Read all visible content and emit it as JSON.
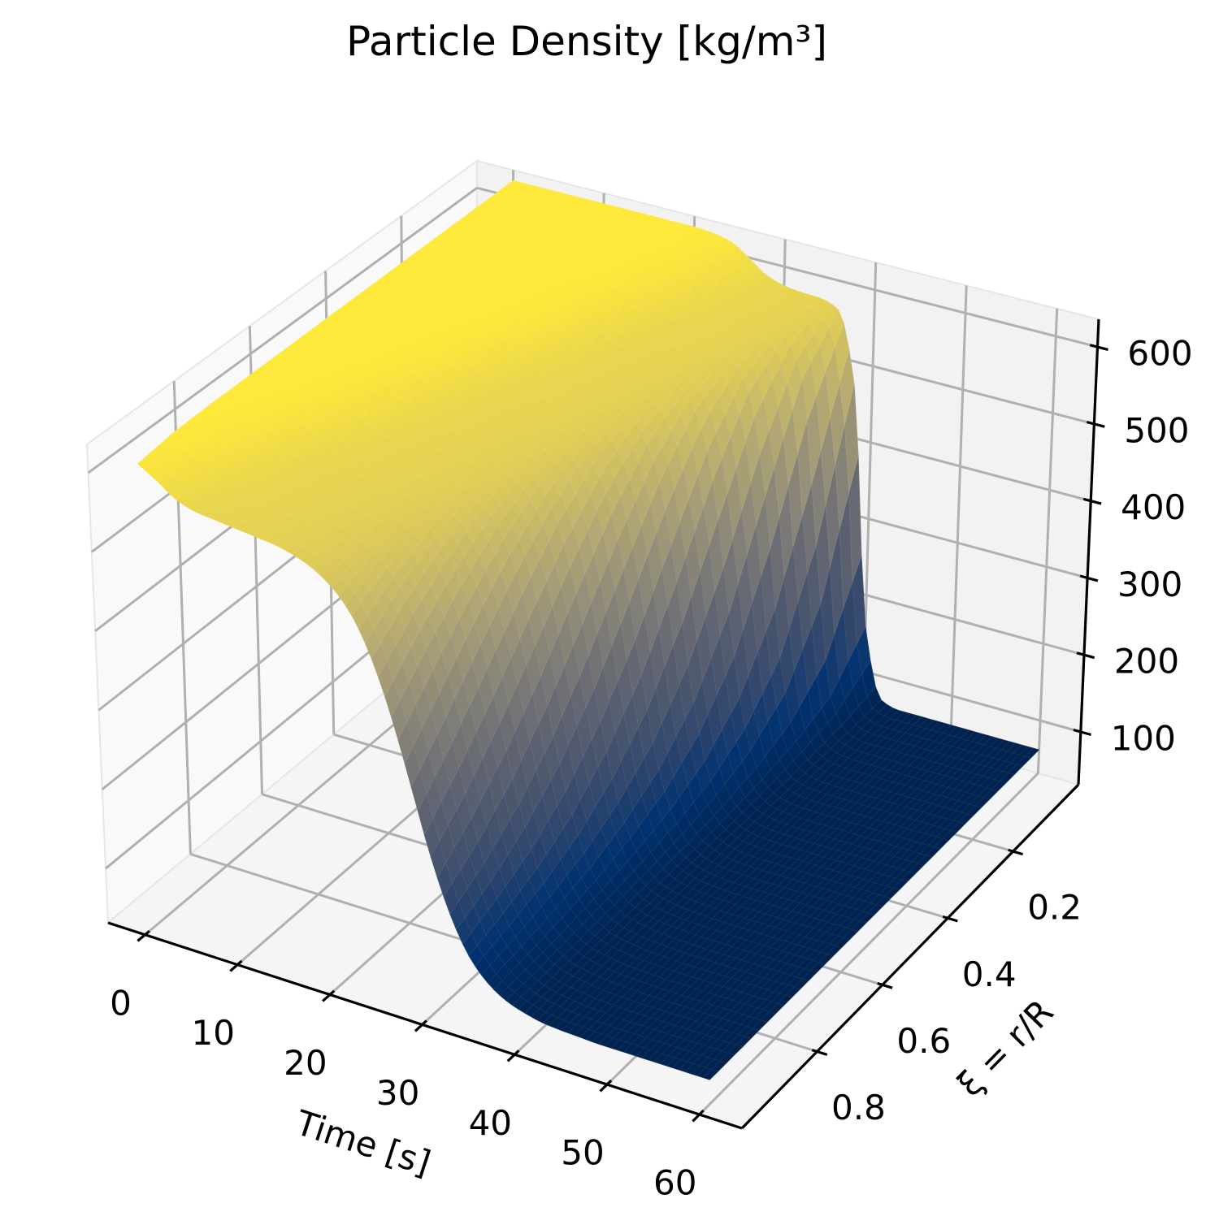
{
  "chart_data": {
    "type": "surface",
    "title": "Particle Density [kg/m³]",
    "xlabel": "Time [s]",
    "ylabel": "ξ = r/R",
    "zlabel": "",
    "colormap": "cividis",
    "x_ticks": [
      0,
      10,
      20,
      30,
      40,
      50,
      60
    ],
    "x_tick_labels": [
      "0",
      "10",
      "20",
      "30",
      "40",
      "50",
      "60"
    ],
    "y_ticks": [
      0.2,
      0.4,
      0.6,
      0.8
    ],
    "y_tick_labels": [
      "0.2",
      "0.4",
      "0.6",
      "0.8"
    ],
    "z_ticks": [
      100,
      200,
      300,
      400,
      500,
      600
    ],
    "z_tick_labels": [
      "100",
      "200",
      "300",
      "400",
      "500",
      "600"
    ],
    "xlim": [
      -4,
      64.6
    ],
    "ylim": [
      0,
      1.03
    ],
    "zlim": [
      31.4,
      636
    ],
    "grid": true,
    "x": [
      0,
      2,
      4,
      6,
      8,
      10,
      12,
      14,
      16,
      18,
      20,
      22,
      24,
      26,
      28,
      30,
      32,
      34,
      36,
      38,
      40,
      42,
      44,
      46,
      48,
      50,
      52,
      54,
      56,
      58,
      60
    ],
    "y": [
      0.0,
      0.1,
      0.2,
      0.3,
      0.4,
      0.5,
      0.6,
      0.7,
      0.8,
      0.9,
      1.0
    ],
    "z": [
      [
        622,
        622,
        622,
        622,
        622,
        622,
        622,
        622,
        622,
        622,
        622,
        620,
        615,
        600,
        583,
        575,
        572,
        571,
        562,
        470,
        159,
        69,
        62,
        62,
        62,
        62,
        62,
        62,
        62,
        62,
        62
      ],
      [
        622,
        622,
        622,
        622,
        622,
        622,
        622,
        622,
        622,
        622,
        620,
        613,
        596,
        581,
        575,
        572,
        569,
        560,
        509,
        300,
        109,
        68,
        62,
        62,
        62,
        62,
        62,
        62,
        62,
        62,
        62
      ],
      [
        622,
        622,
        622,
        622,
        622,
        622,
        622,
        622,
        621,
        619,
        610,
        592,
        579,
        574,
        572,
        568,
        560,
        526,
        397,
        194,
        92,
        68,
        63,
        62,
        62,
        62,
        62,
        62,
        62,
        62,
        62
      ],
      [
        622,
        622,
        622,
        622,
        622,
        622,
        622,
        621,
        618,
        607,
        588,
        577,
        573,
        571,
        568,
        560,
        534,
        450,
        285,
        143,
        84,
        67,
        63,
        62,
        62,
        62,
        62,
        62,
        62,
        62,
        62
      ],
      [
        622,
        622,
        622,
        622,
        622,
        622,
        621,
        617,
        603,
        585,
        576,
        573,
        570,
        567,
        559,
        538,
        480,
        358,
        210,
        116,
        79,
        67,
        63,
        62,
        62,
        62,
        62,
        62,
        62,
        62,
        62
      ],
      [
        622,
        622,
        622,
        622,
        622,
        620,
        615,
        600,
        583,
        575,
        572,
        570,
        566,
        559,
        541,
        498,
        408,
        278,
        164,
        102,
        76,
        67,
        63,
        62,
        62,
        62,
        62,
        62,
        62,
        62,
        62
      ],
      [
        622,
        622,
        622,
        622,
        620,
        613,
        596,
        581,
        575,
        572,
        569,
        565,
        559,
        543,
        510,
        442,
        335,
        220,
        137,
        94,
        74,
        67,
        64,
        63,
        62,
        62,
        62,
        62,
        62,
        62,
        62
      ],
      [
        622,
        622,
        621,
        619,
        610,
        592,
        579,
        574,
        571,
        568,
        565,
        558,
        545,
        517,
        466,
        379,
        273,
        179,
        119,
        88,
        73,
        67,
        64,
        63,
        62,
        62,
        62,
        62,
        62,
        62,
        62
      ],
      [
        622,
        621,
        618,
        607,
        588,
        577,
        573,
        570,
        568,
        564,
        557,
        546,
        523,
        481,
        413,
        320,
        225,
        152,
        108,
        84,
        72,
        67,
        64,
        63,
        62,
        62,
        62,
        62,
        62,
        62,
        62
      ],
      [
        621,
        617,
        603,
        585,
        576,
        572,
        570,
        567,
        563,
        557,
        546,
        527,
        493,
        437,
        359,
        270,
        190,
        134,
        100,
        81,
        71,
        67,
        64,
        63,
        62,
        62,
        62,
        62,
        62,
        62,
        62
      ],
      [
        615,
        600,
        583,
        575,
        572,
        569,
        566,
        563,
        557,
        547,
        530,
        502,
        455,
        389,
        309,
        229,
        165,
        120,
        94,
        79,
        71,
        66,
        64,
        63,
        62,
        62,
        62,
        62,
        62,
        62,
        62
      ]
    ]
  },
  "style": {
    "background": "#ffffff",
    "pane_left": "#f9f9f9",
    "pane_right": "#f2f2f2",
    "pane_floor": "#f5f5f5",
    "pane_edge": "#e6e6e6",
    "gridline": "#b0b0b0",
    "axis_line": "#000000",
    "text": "#000000",
    "colormap_stops": [
      "#00224e",
      "#00326f",
      "#2e456d",
      "#4a566d",
      "#626572",
      "#7b7a77",
      "#958f78",
      "#afa574",
      "#cabb67",
      "#e5d152",
      "#fee838"
    ]
  }
}
